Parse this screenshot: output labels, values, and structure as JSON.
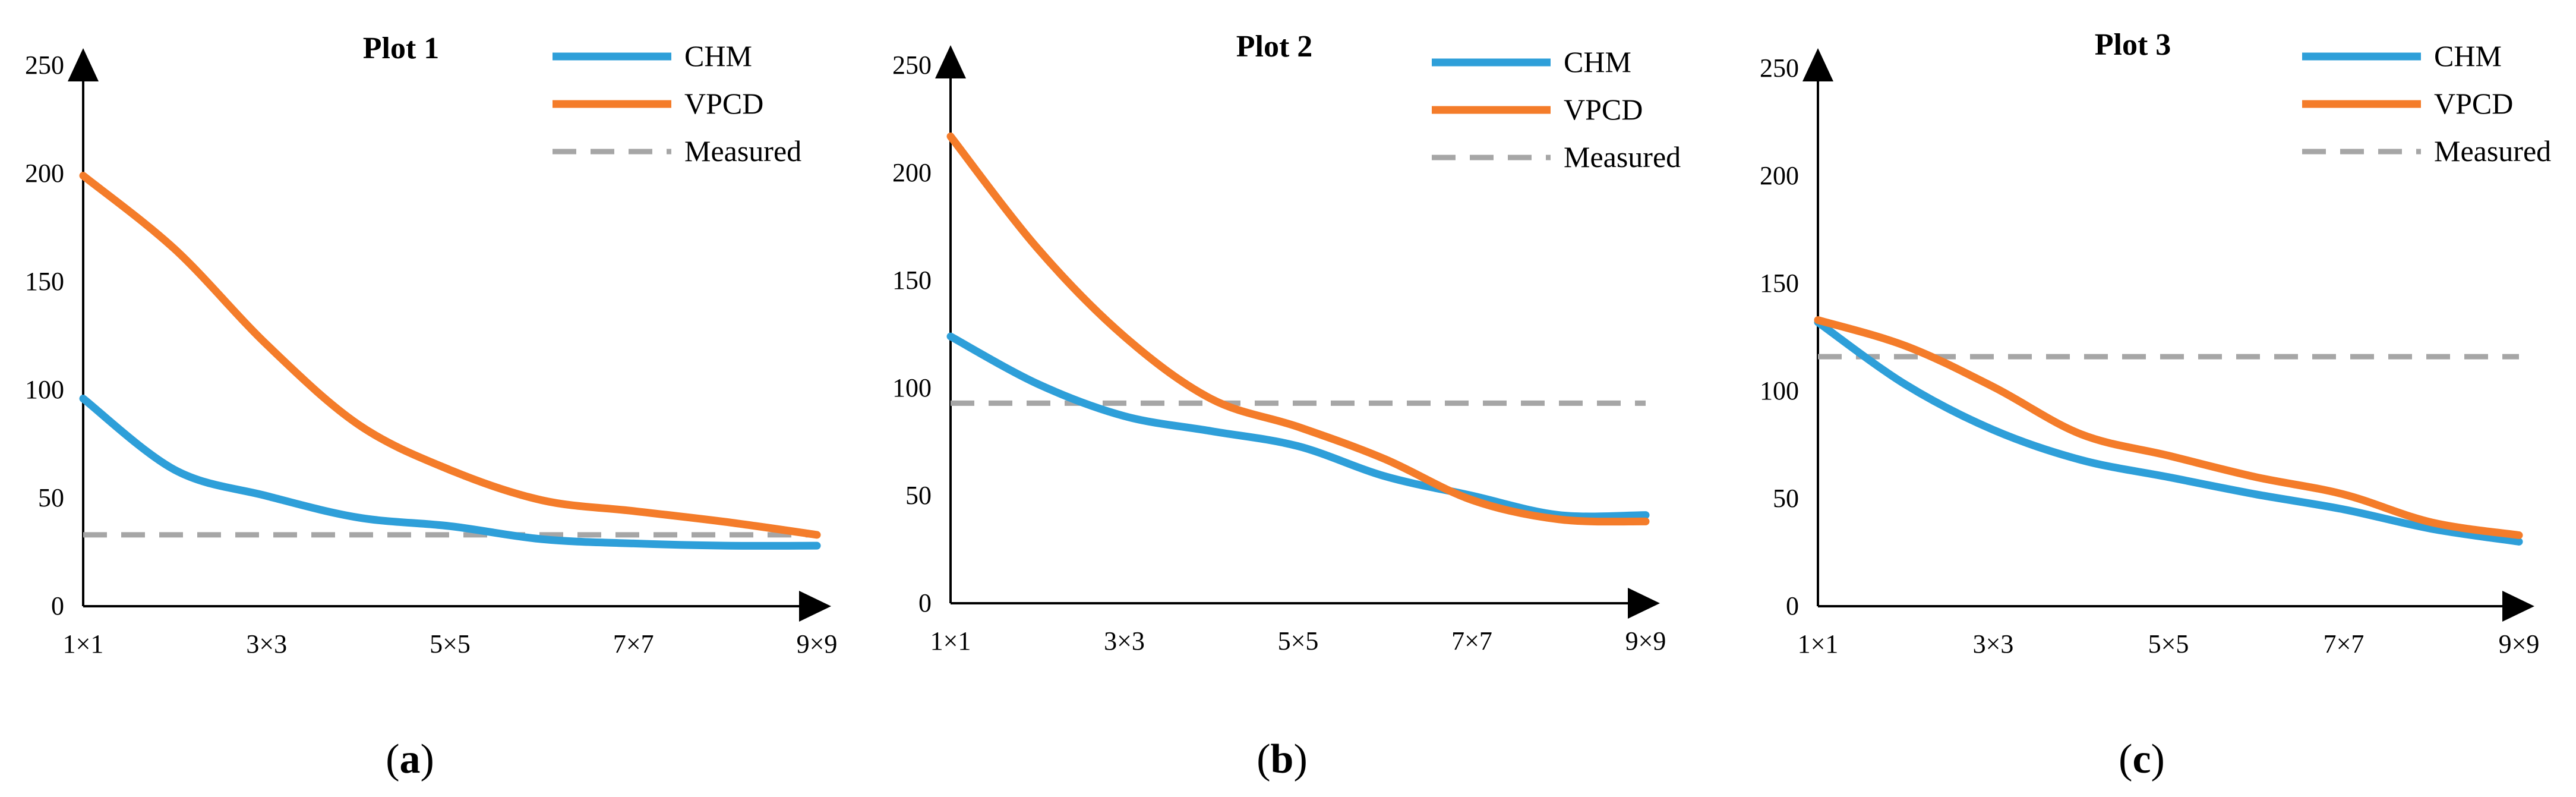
{
  "chart_data": [
    {
      "type": "line",
      "title": "Plot 1",
      "caption": "a",
      "categories": [
        "1×1",
        "3×3",
        "5×5",
        "7×7",
        "9×9"
      ],
      "x": [
        1,
        2,
        3,
        4,
        5,
        6,
        7,
        8,
        9
      ],
      "xlabel": "",
      "ylabel": "",
      "ylim": [
        0,
        250
      ],
      "yticks": [
        "0",
        "50",
        "100",
        "150",
        "200",
        "250"
      ],
      "series": [
        {
          "name": "CHM",
          "style": "solid",
          "color": "#2e9fd9",
          "values": [
            96,
            63,
            51,
            41,
            37,
            31,
            29,
            28,
            28
          ]
        },
        {
          "name": "VPCD",
          "style": "solid",
          "color": "#f47c2a",
          "values": [
            199,
            165,
            121,
            84,
            63,
            49,
            44,
            39,
            33
          ]
        },
        {
          "name": "Measured",
          "style": "dashed",
          "color": "#a6a6a6",
          "values": [
            33,
            33,
            33,
            33,
            33,
            33,
            33,
            33,
            33
          ]
        }
      ]
    },
    {
      "type": "line",
      "title": "Plot 2",
      "caption": "b",
      "categories": [
        "1×1",
        "3×3",
        "5×5",
        "7×7",
        "9×9"
      ],
      "x": [
        1,
        2,
        3,
        4,
        5,
        6,
        7,
        8,
        9
      ],
      "xlabel": "",
      "ylabel": "",
      "ylim": [
        0,
        250
      ],
      "yticks": [
        "0",
        "50",
        "100",
        "150",
        "200",
        "250"
      ],
      "series": [
        {
          "name": "CHM",
          "style": "solid",
          "color": "#2e9fd9",
          "values": [
            124,
            102,
            87,
            80,
            73,
            59,
            50,
            41,
            41
          ]
        },
        {
          "name": "VPCD",
          "style": "solid",
          "color": "#f47c2a",
          "values": [
            217,
            165,
            124,
            95,
            82,
            67,
            48,
            39,
            38
          ]
        },
        {
          "name": "Measured",
          "style": "dashed",
          "color": "#a6a6a6",
          "values": [
            93,
            93,
            93,
            93,
            93,
            93,
            93,
            93,
            93
          ]
        }
      ]
    },
    {
      "type": "line",
      "title": "Plot 3",
      "caption": "c",
      "categories": [
        "1×1",
        "3×3",
        "5×5",
        "7×7",
        "9×9"
      ],
      "x": [
        1,
        2,
        3,
        4,
        5,
        6,
        7,
        8,
        9
      ],
      "xlabel": "",
      "ylabel": "",
      "ylim": [
        0,
        250
      ],
      "yticks": [
        "0",
        "50",
        "100",
        "150",
        "200",
        "250"
      ],
      "series": [
        {
          "name": "CHM",
          "style": "solid",
          "color": "#2e9fd9",
          "values": [
            132,
            103,
            82,
            68,
            60,
            52,
            45,
            36,
            30
          ]
        },
        {
          "name": "VPCD",
          "style": "solid",
          "color": "#f47c2a",
          "values": [
            133,
            121,
            102,
            80,
            70,
            60,
            52,
            39,
            33
          ]
        },
        {
          "name": "Measured",
          "style": "dashed",
          "color": "#a6a6a6",
          "values": [
            116,
            116,
            116,
            116,
            116,
            116,
            116,
            116,
            116
          ]
        }
      ]
    }
  ]
}
